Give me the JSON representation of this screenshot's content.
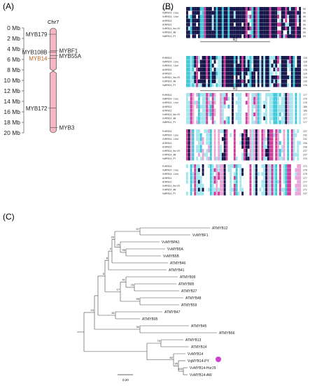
{
  "panelA": {
    "label": "(A)",
    "chromosome": "Chr7",
    "scale_max_mb": 20,
    "ticks": [
      "0 Mb",
      "2 Mb",
      "4 Mb",
      "6 Mb",
      "8 Mb",
      "10 Mb",
      "12 Mb",
      "14 Mb",
      "16 Mb",
      "18 Mb",
      "20 Mb"
    ],
    "genes": [
      {
        "name": "MYB179",
        "pos_mb": 1.2,
        "side": "left",
        "color": "#222222"
      },
      {
        "name": "MYB108B",
        "pos_mb": 4.6,
        "side": "left",
        "color": "#222222"
      },
      {
        "name": "MYBF1",
        "pos_mb": 4.3,
        "side": "right",
        "color": "#222222"
      },
      {
        "name": "MYB55A",
        "pos_mb": 5.3,
        "side": "right",
        "color": "#222222"
      },
      {
        "name": "MYB14",
        "pos_mb": 5.8,
        "side": "left",
        "color": "#b5651d"
      },
      {
        "name": "MYB172",
        "pos_mb": 15.3,
        "side": "left",
        "color": "#222222"
      },
      {
        "name": "MYB3",
        "pos_mb": 19.0,
        "side": "right",
        "color": "#222222"
      }
    ],
    "chromosome_color": "#f4b6c2"
  },
  "panelB": {
    "label": "(B)",
    "blocks": [
      {
        "sequences": [
          "PcMYB14",
          "VaMYB14-like",
          "VvMYB14-like",
          "AtMYB14",
          "AtMYB15",
          "VvMYB14_Hor29",
          "VvMYB14_AW",
          "VqMYB14_PY"
        ],
        "numbers": [
          "60",
          "60",
          "60",
          "60",
          "60",
          "60",
          "60",
          "60"
        ],
        "marker": "R2"
      },
      {
        "sequences": [
          "PcMYB14",
          "VaMYB14-like",
          "VvMYB14-like",
          "AtMYB14",
          "AtMYB15",
          "VvMYB14_Hor29",
          "VvMYB14_AW",
          "VqMYB14_PY"
        ],
        "numbers": [
          "120",
          "120",
          "120",
          "120",
          "120",
          "120",
          "120",
          "120"
        ],
        "marker": "R3"
      },
      {
        "sequences": [
          "PcMYB14",
          "VaMYB14-like",
          "VvMYB14-like",
          "AtMYB14",
          "AtMYB15",
          "VvMYB14_Hor29",
          "VvMYB14_AW",
          "VqMYB14_PY"
        ],
        "numbers": [
          "177",
          "176",
          "176",
          "180",
          "180",
          "177",
          "177",
          "177"
        ],
        "marker": ""
      },
      {
        "sequences": [
          "PcMYB14",
          "VaMYB14-like",
          "VvMYB14-like",
          "AtMYB14",
          "AtMYB15",
          "VvMYB14_Hor29",
          "VvMYB14_AW",
          "VqMYB14_PY"
        ],
        "numbers": [
          "237",
          "242",
          "242",
          "250",
          "250",
          "237",
          "237",
          "234"
        ],
        "marker": ""
      },
      {
        "sequences": [
          "PcMYB14",
          "VaMYB14-like",
          "VvMYB14-like",
          "AtMYB14",
          "AtMYB15",
          "VvMYB14_Hor29",
          "VvMYB14_AW",
          "VqMYB14_PY"
        ],
        "numbers": [
          "272",
          "270",
          "270",
          "277",
          "277",
          "272",
          "272",
          "247"
        ],
        "marker": ""
      }
    ],
    "colors": {
      "dark": "#16164a",
      "magenta": "#cc3d9c",
      "cyan": "#40c8d8",
      "lightcyan": "#a4e6ee",
      "pink": "#e8a6d6"
    }
  },
  "panelC": {
    "label": "(C)",
    "scale_label": "0.20",
    "leaves": [
      "ATMYB12",
      "VvMYBF1",
      "VvMYBPA1",
      "VvMYB5A",
      "VvMYB5B",
      "ATMYB46",
      "ATMYB41",
      "ATMYB99",
      "ATMYB85",
      "ATMYB27",
      "ATMYB48",
      "ATMYB59",
      "ATMYB47",
      "ATMYB95",
      "ATMYB45",
      "ATMYB66",
      "ATMYB13",
      "ATMYB14",
      "VvMYB14",
      "VqMYB14-PY",
      "VvMYB14-Hor29",
      "VvMYB14-AW"
    ],
    "bootstrap": [
      "57",
      "25",
      "20",
      "4",
      "95",
      "8",
      "5",
      "17",
      "75",
      "41",
      "99",
      "81",
      "30",
      "10",
      "70",
      "82",
      "95",
      "100"
    ],
    "highlight_color": "#cc44cc"
  }
}
